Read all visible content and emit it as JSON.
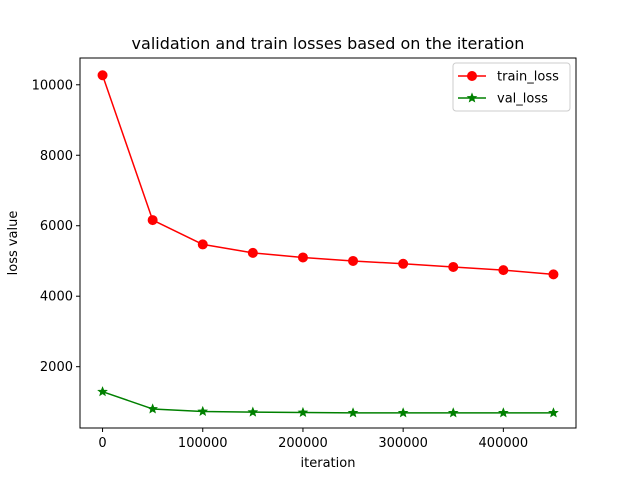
{
  "chart_data": {
    "type": "line",
    "title": "validation and train losses based on the iteration",
    "xlabel": "iteration",
    "ylabel": "loss value",
    "x": [
      0,
      50000,
      100000,
      150000,
      200000,
      250000,
      300000,
      350000,
      400000,
      450000
    ],
    "xlim": [
      -22500,
      472500
    ],
    "ylim": [
      260,
      10760
    ],
    "xticks": [
      0,
      100000,
      200000,
      300000,
      400000
    ],
    "yticks": [
      2000,
      4000,
      6000,
      8000,
      10000
    ],
    "grid": false,
    "legend_position": "upper right",
    "series": [
      {
        "name": "train_loss",
        "color": "#ff0000",
        "marker": "circle",
        "values": [
          10270,
          6160,
          5470,
          5230,
          5100,
          5000,
          4920,
          4830,
          4740,
          4620
        ]
      },
      {
        "name": "val_loss",
        "color": "#008000",
        "marker": "star",
        "values": [
          1290,
          800,
          730,
          710,
          700,
          690,
          690,
          690,
          690,
          690
        ]
      }
    ]
  }
}
